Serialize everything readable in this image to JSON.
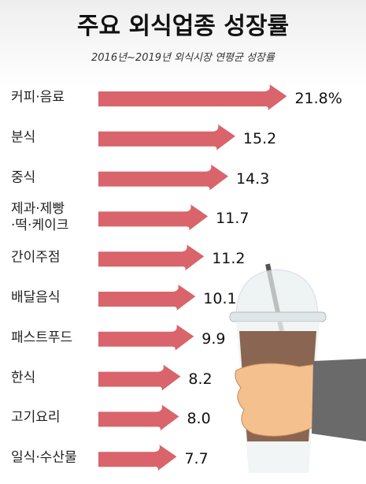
{
  "chart_data": {
    "type": "bar",
    "title": "주요 외식업종 성장률",
    "subtitle": "2016년~2019년 외식시장 연평균 성장률",
    "categories": [
      "커피·음료",
      "분식",
      "중식",
      "제과·제빵\n·떡·케이크",
      "간이주점",
      "배달음식",
      "패스트푸드",
      "한식",
      "고기요리",
      "일식·수산물"
    ],
    "values": [
      21.8,
      15.2,
      14.3,
      11.7,
      11.2,
      10.1,
      9.9,
      8.2,
      8.0,
      7.7
    ],
    "value_labels": [
      "21.8%",
      "15.2",
      "14.3",
      "11.7",
      "11.2",
      "10.1",
      "9.9",
      "8.2",
      "8.0",
      "7.7"
    ],
    "color": "#d9646b"
  }
}
